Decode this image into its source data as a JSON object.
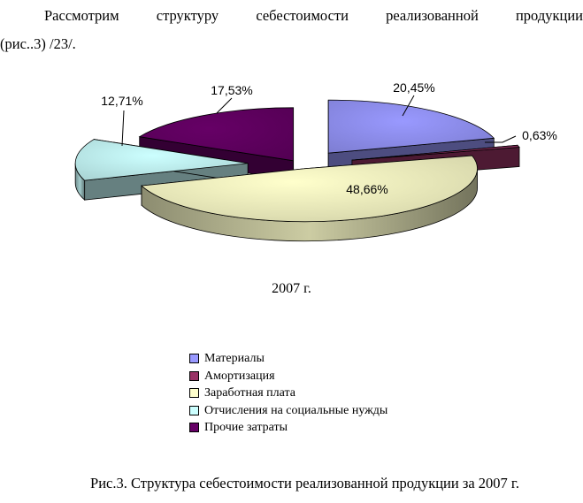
{
  "intro": {
    "line1": "Рассмотрим структуру себестоимости реализованной продукции",
    "line2": "(рис..3) /23/."
  },
  "chart_data": {
    "type": "pie",
    "title": "2007 г.",
    "three_d": true,
    "exploded": true,
    "legend_position": "bottom",
    "categories": [
      "Материалы",
      "Амортизация",
      "Заработная плата",
      "Отчисления на социальные нужды",
      "Прочие затраты"
    ],
    "values": [
      20.45,
      0.63,
      48.66,
      12.71,
      17.53
    ],
    "data_labels": [
      "20,45%",
      "0,63%",
      "48,66%",
      "12,71%",
      "17,53%"
    ],
    "colors": [
      "#9999ff",
      "#993366",
      "#ffffcc",
      "#ccffff",
      "#660066"
    ]
  },
  "caption": "Рис.3. Структура себестоимости реализованной продукции за 2007 г."
}
